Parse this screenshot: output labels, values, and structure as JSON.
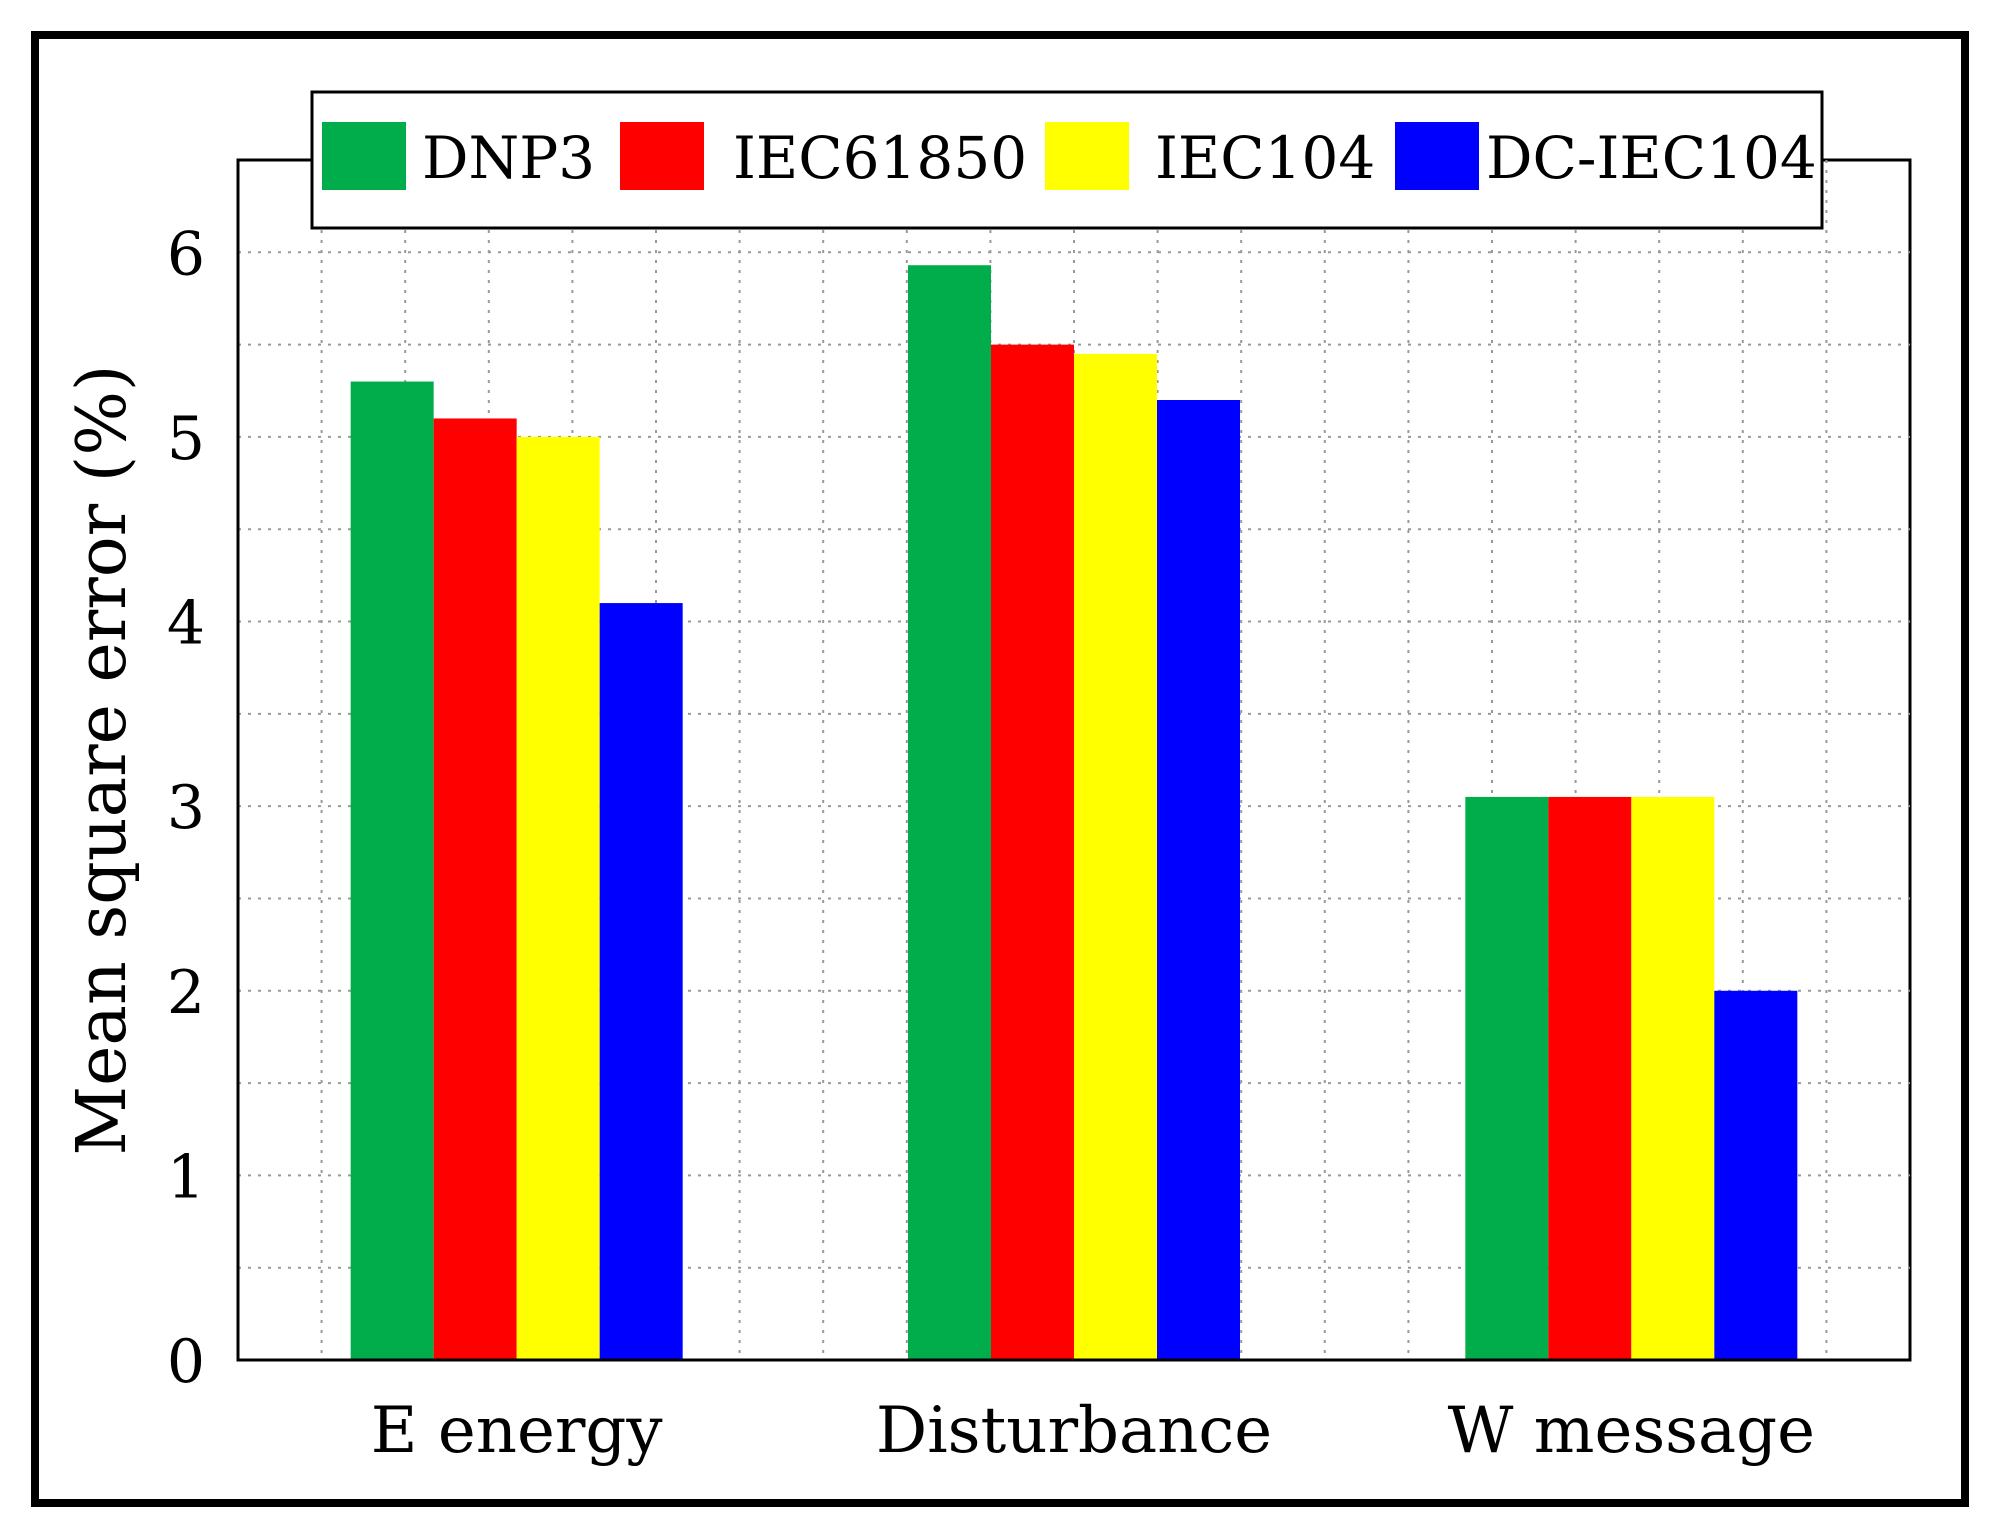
{
  "chart_data": {
    "type": "bar",
    "title": "",
    "xlabel": "",
    "ylabel": "Mean square error (%)",
    "categories": [
      "E energy",
      "Disturbance",
      "W message"
    ],
    "series": [
      {
        "name": "DNP3",
        "color": "#00ad4a",
        "values": [
          5.3,
          5.93,
          3.05
        ]
      },
      {
        "name": "IEC61850",
        "color": "#ff0000",
        "values": [
          5.1,
          5.5,
          3.05
        ]
      },
      {
        "name": "IEC104",
        "color": "#ffff00",
        "values": [
          5.0,
          5.45,
          3.05
        ]
      },
      {
        "name": "DC-IEC104",
        "color": "#0000ff",
        "values": [
          4.1,
          5.2,
          2.0
        ]
      }
    ],
    "ylim": [
      0,
      6.5
    ],
    "yticks": [
      0,
      1,
      2,
      3,
      4,
      5,
      6
    ],
    "grid": true,
    "legend_position": "top"
  }
}
